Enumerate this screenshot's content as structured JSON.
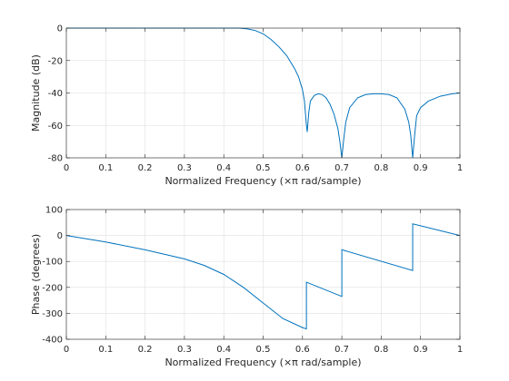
{
  "chart_data": [
    {
      "type": "line",
      "xlabel": "Normalized Frequency  (×π rad/sample)",
      "ylabel": "Magnitude (dB)",
      "xlim": [
        0,
        1
      ],
      "ylim": [
        -80,
        0
      ],
      "grid": true,
      "xticks": [
        0,
        0.1,
        0.2,
        0.3,
        0.4,
        0.5,
        0.6,
        0.7,
        0.8,
        0.9,
        1
      ],
      "xtick_labels": [
        "0",
        "0.1",
        "0.2",
        "0.3",
        "0.4",
        "0.5",
        "0.6",
        "0.7",
        "0.8",
        "0.9",
        "1"
      ],
      "yticks": [
        0,
        -20,
        -40,
        -60,
        -80
      ],
      "ytick_labels": [
        "0",
        "-20",
        "-40",
        "-60",
        "-80"
      ],
      "line_color": "#0072bd",
      "series": [
        {
          "x": [
            0,
            0.1,
            0.2,
            0.3,
            0.4,
            0.44,
            0.46,
            0.48,
            0.5,
            0.52,
            0.54,
            0.56,
            0.58,
            0.59,
            0.6,
            0.605,
            0.61,
            0.612,
            0.616,
            0.62,
            0.63,
            0.64,
            0.65,
            0.66,
            0.67,
            0.68,
            0.69,
            0.695,
            0.7,
            0.705,
            0.71,
            0.72,
            0.74,
            0.76,
            0.78,
            0.8,
            0.82,
            0.84,
            0.86,
            0.87,
            0.875,
            0.88,
            0.885,
            0.89,
            0.9,
            0.92,
            0.95,
            0.98,
            1.0
          ],
          "y": [
            0,
            0,
            0,
            0,
            0,
            0,
            -0.5,
            -1.5,
            -3.5,
            -7,
            -11.5,
            -17,
            -25,
            -30,
            -38,
            -45,
            -60,
            -64,
            -52,
            -45,
            -41.5,
            -40.5,
            -41,
            -43,
            -47,
            -53,
            -62,
            -70,
            -80,
            -68,
            -58,
            -49,
            -43,
            -41,
            -40.5,
            -40.5,
            -41,
            -43,
            -50,
            -58,
            -66,
            -80,
            -66,
            -54,
            -49,
            -45,
            -42,
            -40.5,
            -40
          ]
        }
      ]
    },
    {
      "type": "line",
      "xlabel": "Normalized Frequency  (×π rad/sample)",
      "ylabel": "Phase (degrees)",
      "xlim": [
        0,
        1
      ],
      "ylim": [
        -400,
        100
      ],
      "grid": true,
      "xticks": [
        0,
        0.1,
        0.2,
        0.3,
        0.4,
        0.5,
        0.6,
        0.7,
        0.8,
        0.9,
        1
      ],
      "xtick_labels": [
        "0",
        "0.1",
        "0.2",
        "0.3",
        "0.4",
        "0.5",
        "0.6",
        "0.7",
        "0.8",
        "0.9",
        "1"
      ],
      "yticks": [
        100,
        0,
        -100,
        -200,
        -300,
        -400
      ],
      "ytick_labels": [
        "100",
        "0",
        "-100",
        "-200",
        "-300",
        "-400"
      ],
      "line_color": "#0072bd",
      "series": [
        {
          "x": [
            0,
            0.1,
            0.2,
            0.3,
            0.35,
            0.4,
            0.45,
            0.5,
            0.55,
            0.6,
            0.61,
            0.61,
            0.7,
            0.7,
            0.88,
            0.88,
            1.0
          ],
          "y": [
            0,
            -25,
            -55,
            -90,
            -115,
            -150,
            -200,
            -260,
            -320,
            -355,
            -360,
            -180,
            -235,
            -55,
            -135,
            45,
            0
          ]
        }
      ]
    }
  ]
}
